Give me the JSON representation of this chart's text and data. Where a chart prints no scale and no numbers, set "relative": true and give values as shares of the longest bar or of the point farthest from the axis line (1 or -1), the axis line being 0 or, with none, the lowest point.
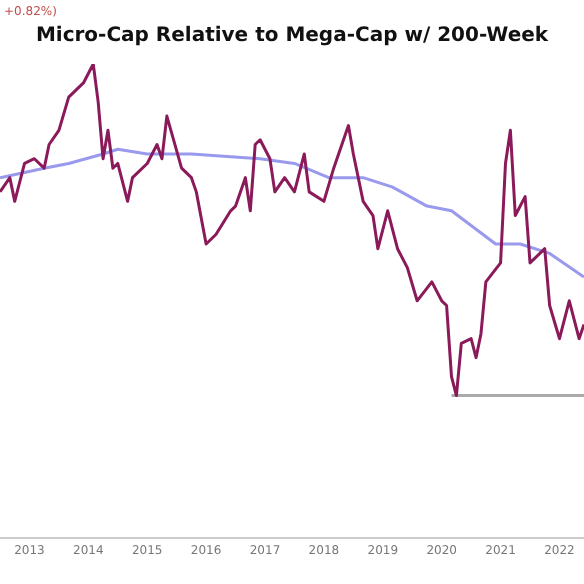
{
  "chart_data": {
    "type": "line",
    "title": "Micro-Cap Relative to Mega-Cap w/ 200-Week",
    "relative": true,
    "legend": false,
    "grid": false,
    "marker": "none",
    "annotations": [
      "+0.82%)"
    ],
    "xlim": [
      "2012-07",
      "2022-06"
    ],
    "xticks": [
      "2013",
      "2014",
      "2015",
      "2016",
      "2017",
      "2018",
      "2019",
      "2020",
      "2021",
      "2022"
    ],
    "tick_labels": "x",
    "series": [
      {
        "color": "#8b1a5a",
        "x": [
          "2012-07",
          "2012-09",
          "2012-10",
          "2012-12",
          "2013-02",
          "2013-04",
          "2013-05",
          "2013-07",
          "2013-09",
          "2013-12",
          "2014-01",
          "2014-02",
          "2014-03",
          "2014-04",
          "2014-05",
          "2014-06",
          "2014-07",
          "2014-09",
          "2014-10",
          "2015-01",
          "2015-03",
          "2015-04",
          "2015-05",
          "2015-08",
          "2015-10",
          "2015-11",
          "2016-01",
          "2016-03",
          "2016-06",
          "2016-07",
          "2016-09",
          "2016-10",
          "2016-11",
          "2016-12",
          "2017-02",
          "2017-03",
          "2017-05",
          "2017-07",
          "2017-09",
          "2017-10",
          "2018-01",
          "2018-03",
          "2018-06",
          "2018-07",
          "2018-09",
          "2018-11",
          "2018-12",
          "2019-02",
          "2019-04",
          "2019-06",
          "2019-08",
          "2019-11",
          "2020-01",
          "2020-02",
          "2020-03",
          "2020-04",
          "2020-05",
          "2020-07",
          "2020-08",
          "2020-09",
          "2020-10",
          "2021-01",
          "2021-02",
          "2021-03",
          "2021-04",
          "2021-06",
          "2021-07",
          "2021-10",
          "2021-11",
          "2022-01",
          "2022-03",
          "2022-05",
          "2022-06"
        ],
        "values": [
          0.73,
          0.76,
          0.71,
          0.79,
          0.8,
          0.78,
          0.83,
          0.86,
          0.93,
          0.96,
          0.98,
          1,
          0.92,
          0.8,
          0.86,
          0.78,
          0.79,
          0.71,
          0.76,
          0.79,
          0.83,
          0.8,
          0.89,
          0.78,
          0.76,
          0.73,
          0.62,
          0.64,
          0.69,
          0.7,
          0.76,
          0.69,
          0.83,
          0.84,
          0.8,
          0.73,
          0.76,
          0.73,
          0.81,
          0.73,
          0.71,
          0.78,
          0.87,
          0.81,
          0.71,
          0.68,
          0.61,
          0.69,
          0.61,
          0.57,
          0.5,
          0.54,
          0.5,
          0.49,
          0.34,
          0.3,
          0.41,
          0.42,
          0.38,
          0.43,
          0.54,
          0.58,
          0.79,
          0.86,
          0.68,
          0.72,
          0.58,
          0.61,
          0.49,
          0.42,
          0.5,
          0.42,
          0.45
        ]
      },
      {
        "color": "#9999ee",
        "x": [
          "2012-07",
          "2013-04",
          "2013-09",
          "2014-04",
          "2014-07",
          "2015-01",
          "2015-10",
          "2016-12",
          "2017-07",
          "2018-02",
          "2018-09",
          "2019-03",
          "2019-10",
          "2020-03",
          "2020-12",
          "2021-05",
          "2021-11",
          "2022-06"
        ],
        "values": [
          0.76,
          0.78,
          0.79,
          0.81,
          0.82,
          0.81,
          0.81,
          0.8,
          0.79,
          0.76,
          0.76,
          0.74,
          0.7,
          0.69,
          0.62,
          0.62,
          0.6,
          0.55
        ]
      },
      {
        "color": "#aaaaaa",
        "x": [
          "2020-03",
          "2022-06"
        ],
        "values": [
          0.3,
          0.3
        ]
      }
    ]
  }
}
